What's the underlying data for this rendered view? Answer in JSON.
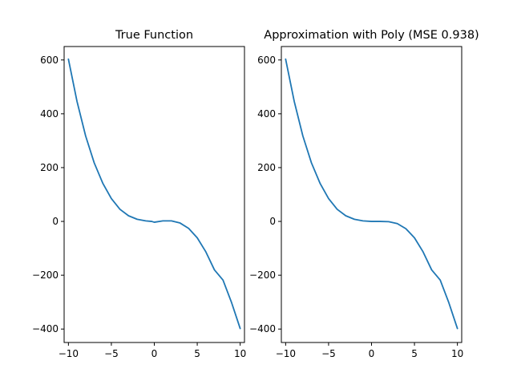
{
  "chart_data": [
    {
      "type": "line",
      "title": "True Function",
      "xlabel": "",
      "ylabel": "",
      "xlim": [
        -10.5,
        10.5
      ],
      "ylim": [
        -450,
        650
      ],
      "xticks": [
        -10,
        -5,
        0,
        5,
        10
      ],
      "xtick_labels": [
        "−10",
        "−5",
        "0",
        "5",
        "10"
      ],
      "yticks": [
        -400,
        -200,
        0,
        200,
        400,
        600
      ],
      "ytick_labels": [
        "−400",
        "−200",
        "0",
        "200",
        "400",
        "600"
      ],
      "grid": false,
      "series": [
        {
          "color": "#1f77b4",
          "x": [
            -10,
            -9,
            -8,
            -7,
            -6,
            -5,
            -4,
            -3,
            -2,
            -1,
            -0.3,
            0,
            1,
            2,
            3,
            4,
            5,
            6,
            7,
            8,
            9,
            10
          ],
          "y": [
            603,
            446,
            318,
            218,
            142,
            85,
            45,
            21,
            8,
            2,
            0,
            -3,
            2,
            2,
            -6,
            -26,
            -61,
            -113,
            -180,
            -218,
            -302,
            -398
          ]
        }
      ]
    },
    {
      "type": "line",
      "title": "Approximation with Poly (MSE 0.938)",
      "xlabel": "",
      "ylabel": "",
      "xlim": [
        -10.5,
        10.5
      ],
      "ylim": [
        -450,
        650
      ],
      "xticks": [
        -10,
        -5,
        0,
        5,
        10
      ],
      "xtick_labels": [
        "−10",
        "−5",
        "0",
        "5",
        "10"
      ],
      "yticks": [
        -400,
        -200,
        0,
        200,
        400,
        600
      ],
      "ytick_labels": [
        "−400",
        "−200",
        "0",
        "200",
        "400",
        "600"
      ],
      "grid": false,
      "series": [
        {
          "color": "#1f77b4",
          "x": [
            -10,
            -9,
            -8,
            -7,
            -6,
            -5,
            -4,
            -3,
            -2,
            -1,
            0,
            1,
            2,
            3,
            4,
            5,
            6,
            7,
            8,
            9,
            10
          ],
          "y": [
            603,
            446,
            318,
            218,
            142,
            85,
            45,
            21,
            8,
            2,
            0,
            0,
            -1,
            -8,
            -27,
            -61,
            -113,
            -180,
            -218,
            -302,
            -398
          ]
        }
      ]
    }
  ]
}
